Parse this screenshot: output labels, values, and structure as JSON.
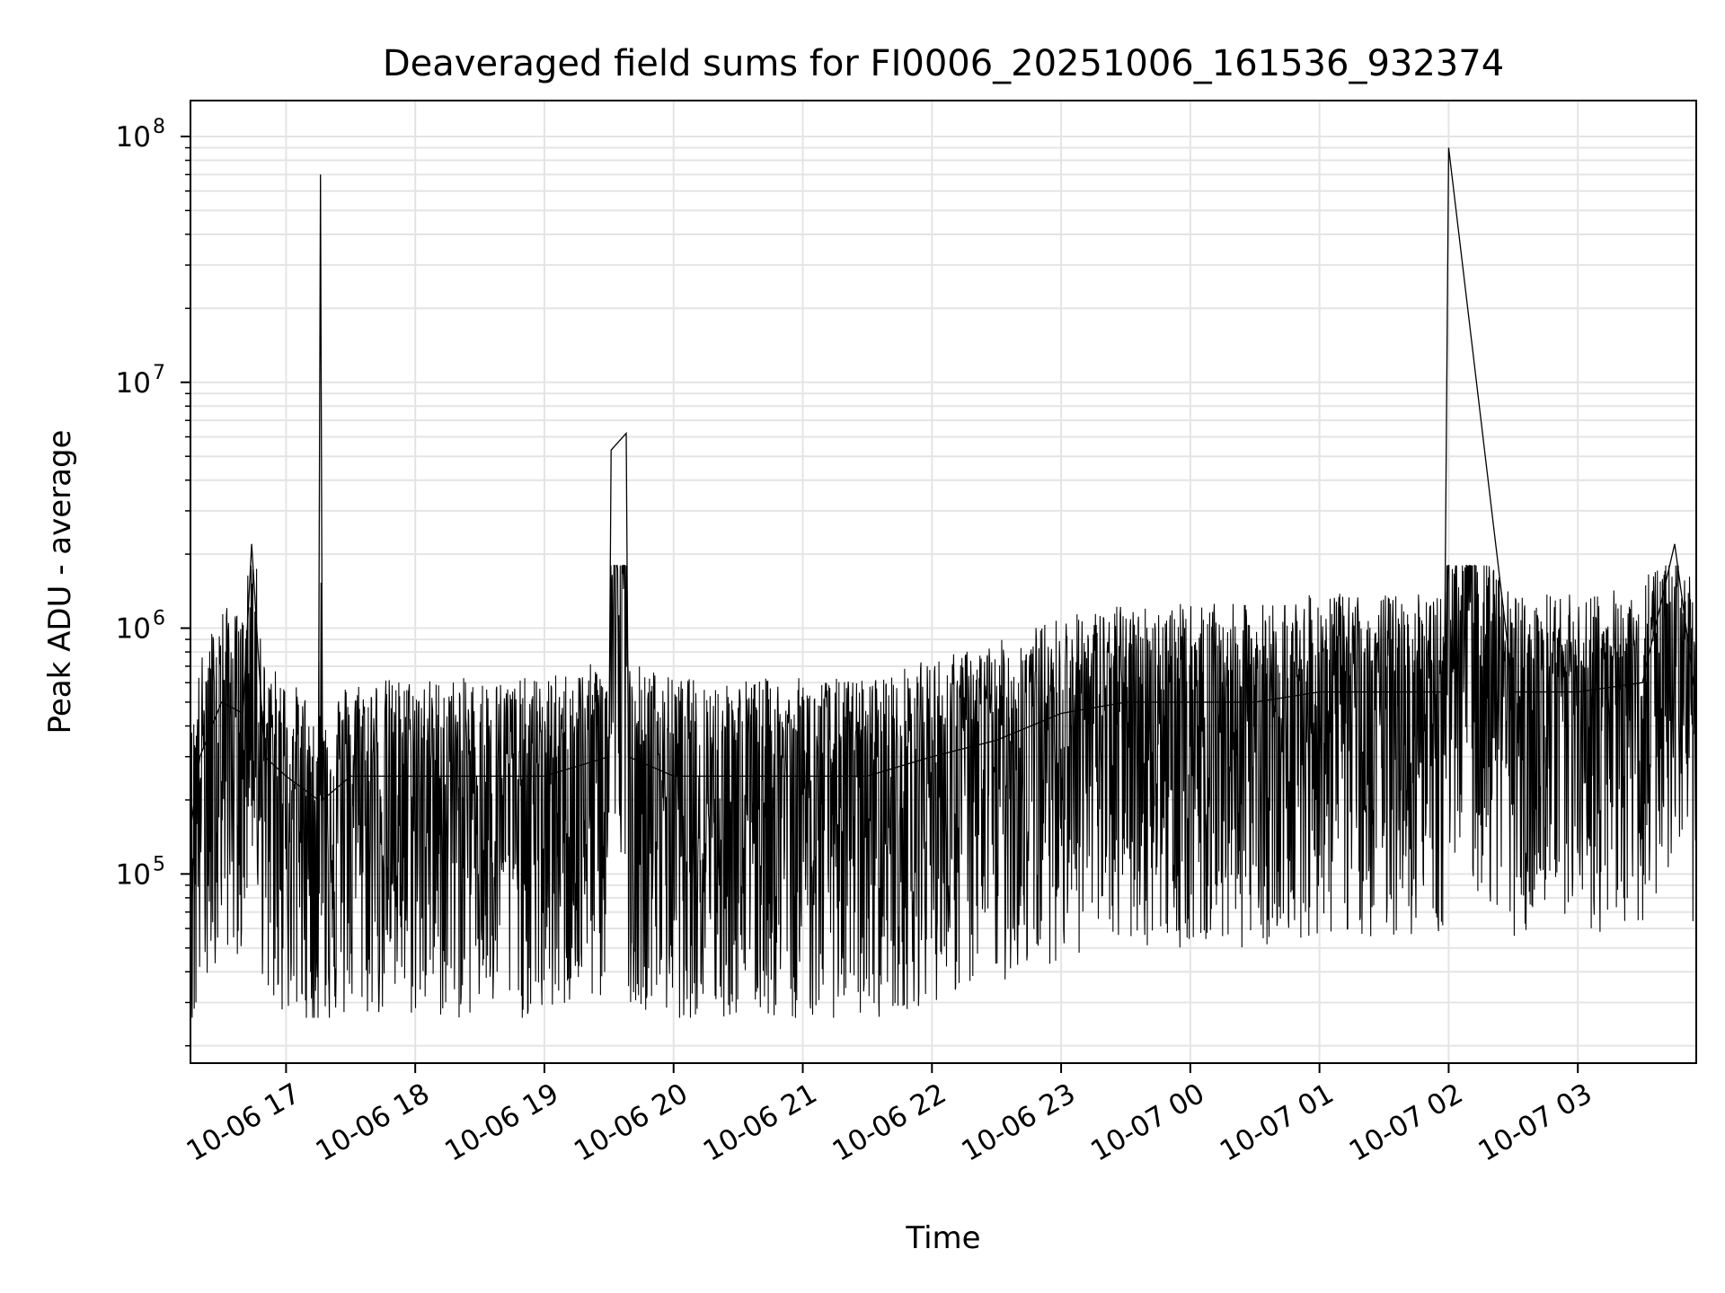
{
  "chart_data": {
    "type": "line",
    "title": "Deaveraged field sums for FI0006_20251006_161536_932374",
    "xlabel": "Time",
    "ylabel": "Peak ADU - average",
    "y_scale": "log",
    "ylim": [
      17000,
      140000000
    ],
    "xlim": [
      "2025-10-06 16:15:36",
      "2025-10-07 03:55:00"
    ],
    "x_tick_labels": [
      "10-06 17",
      "10-06 18",
      "10-06 19",
      "10-06 20",
      "10-06 21",
      "10-06 22",
      "10-06 23",
      "10-07 00",
      "10-07 01",
      "10-07 02",
      "10-07 03"
    ],
    "y_tick_labels": [
      {
        "base": "10",
        "exp": "5"
      },
      {
        "base": "10",
        "exp": "6"
      },
      {
        "base": "10",
        "exp": "7"
      },
      {
        "base": "10",
        "exp": "8"
      }
    ],
    "grid": true,
    "line_color": "#000000",
    "grid_color": "#e4e4e4",
    "series": [
      {
        "x": [
          "2025-10-06 16:15:36",
          "2025-10-06 16:20:00",
          "2025-10-06 16:30:00",
          "2025-10-06 16:40:00",
          "2025-10-06 16:44:00",
          "2025-10-06 16:50:00",
          "2025-10-06 17:00:00",
          "2025-10-06 17:15:00",
          "2025-10-06 17:16:00",
          "2025-10-06 17:17:00",
          "2025-10-06 17:30:00",
          "2025-10-06 18:00:00",
          "2025-10-06 18:30:00",
          "2025-10-06 19:00:00",
          "2025-10-06 19:30:00",
          "2025-10-06 19:31:00",
          "2025-10-06 19:38:00",
          "2025-10-06 19:39:00",
          "2025-10-06 20:00:00",
          "2025-10-06 20:30:00",
          "2025-10-06 21:00:00",
          "2025-10-06 21:30:00",
          "2025-10-06 22:00:00",
          "2025-10-06 22:30:00",
          "2025-10-06 23:00:00",
          "2025-10-06 23:30:00",
          "2025-10-07 00:00:00",
          "2025-10-07 00:30:00",
          "2025-10-07 01:00:00",
          "2025-10-07 01:30:00",
          "2025-10-07 01:58:00",
          "2025-10-07 02:00:00",
          "2025-10-07 02:30:00",
          "2025-10-07 03:00:00",
          "2025-10-07 03:30:00",
          "2025-10-07 03:45:00",
          "2025-10-07 03:55:00"
        ],
        "y": [
          150000,
          300000,
          500000,
          450000,
          2200000,
          300000,
          250000,
          200000,
          70000000,
          200000,
          250000,
          250000,
          250000,
          250000,
          300000,
          5300000,
          6200000,
          300000,
          250000,
          250000,
          250000,
          250000,
          300000,
          350000,
          450000,
          500000,
          500000,
          500000,
          550000,
          550000,
          550000,
          90000000,
          550000,
          550000,
          600000,
          2200000,
          500000
        ]
      }
    ]
  }
}
